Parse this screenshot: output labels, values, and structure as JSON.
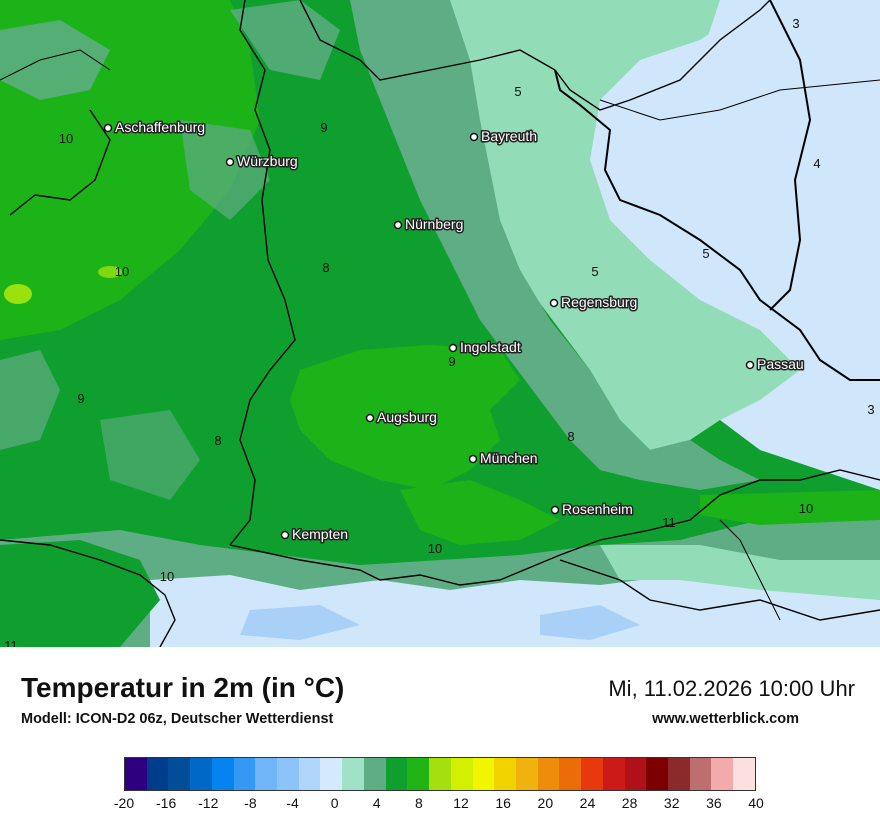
{
  "map": {
    "cities": [
      {
        "name": "Aschaffenburg",
        "icon": "city-dot"
      },
      {
        "name": "Würzburg",
        "icon": "city-dot"
      },
      {
        "name": "Bayreuth",
        "icon": "city-dot"
      },
      {
        "name": "Nürnberg",
        "icon": "city-dot"
      },
      {
        "name": "Regensburg",
        "icon": "city-dot"
      },
      {
        "name": "Ingolstadt",
        "icon": "city-dot"
      },
      {
        "name": "Passau",
        "icon": "city-dot"
      },
      {
        "name": "Augsburg",
        "icon": "city-dot"
      },
      {
        "name": "München",
        "icon": "city-dot"
      },
      {
        "name": "Rosenheim",
        "icon": "city-dot"
      },
      {
        "name": "Kempten",
        "icon": "city-dot"
      }
    ],
    "isotherm_labels": [
      "10",
      "9",
      "5",
      "3",
      "4",
      "10",
      "8",
      "5",
      "5",
      "9",
      "9",
      "3",
      "8",
      "8",
      "10",
      "11",
      "10",
      "10",
      "11"
    ],
    "zone_colors": {
      "base_green": "#0f9f2e",
      "light_green": "#1cb319",
      "grey_green": "#5fad85",
      "mint": "#92dcb8",
      "pale_blue": "#d0e6fb",
      "light_blue": "#a9d1f7",
      "lime": "#9be10e",
      "border": "#000000"
    }
  },
  "header": {
    "title": "Temperatur in 2m (in °C)",
    "model": "Modell: ICON-D2 06z, Deutscher Wetterdienst",
    "datetime": "Mi, 11.02.2026 10:00 Uhr",
    "website": "www.wetterblick.com"
  },
  "legend": {
    "colors": [
      "#2d007f",
      "#003c8c",
      "#004d99",
      "#0069c8",
      "#0584f0",
      "#3399f5",
      "#6fb5f8",
      "#8cc4fa",
      "#afd7fb",
      "#d3e9fc",
      "#9fe2c5",
      "#5fad85",
      "#0f9f2e",
      "#20b515",
      "#a5e00e",
      "#d2f000",
      "#f2f500",
      "#f2d300",
      "#f0b30d",
      "#ee8d0a",
      "#ec6c0a",
      "#e8390e",
      "#cc1a18",
      "#b01017",
      "#7d0000",
      "#8a2a2a",
      "#bd6f6f",
      "#f2aaaa",
      "#fce0e0"
    ],
    "ticks": [
      "-20",
      "-16",
      "-12",
      "-8",
      "-4",
      "0",
      "4",
      "8",
      "12",
      "16",
      "20",
      "24",
      "28",
      "32",
      "36",
      "40"
    ]
  }
}
